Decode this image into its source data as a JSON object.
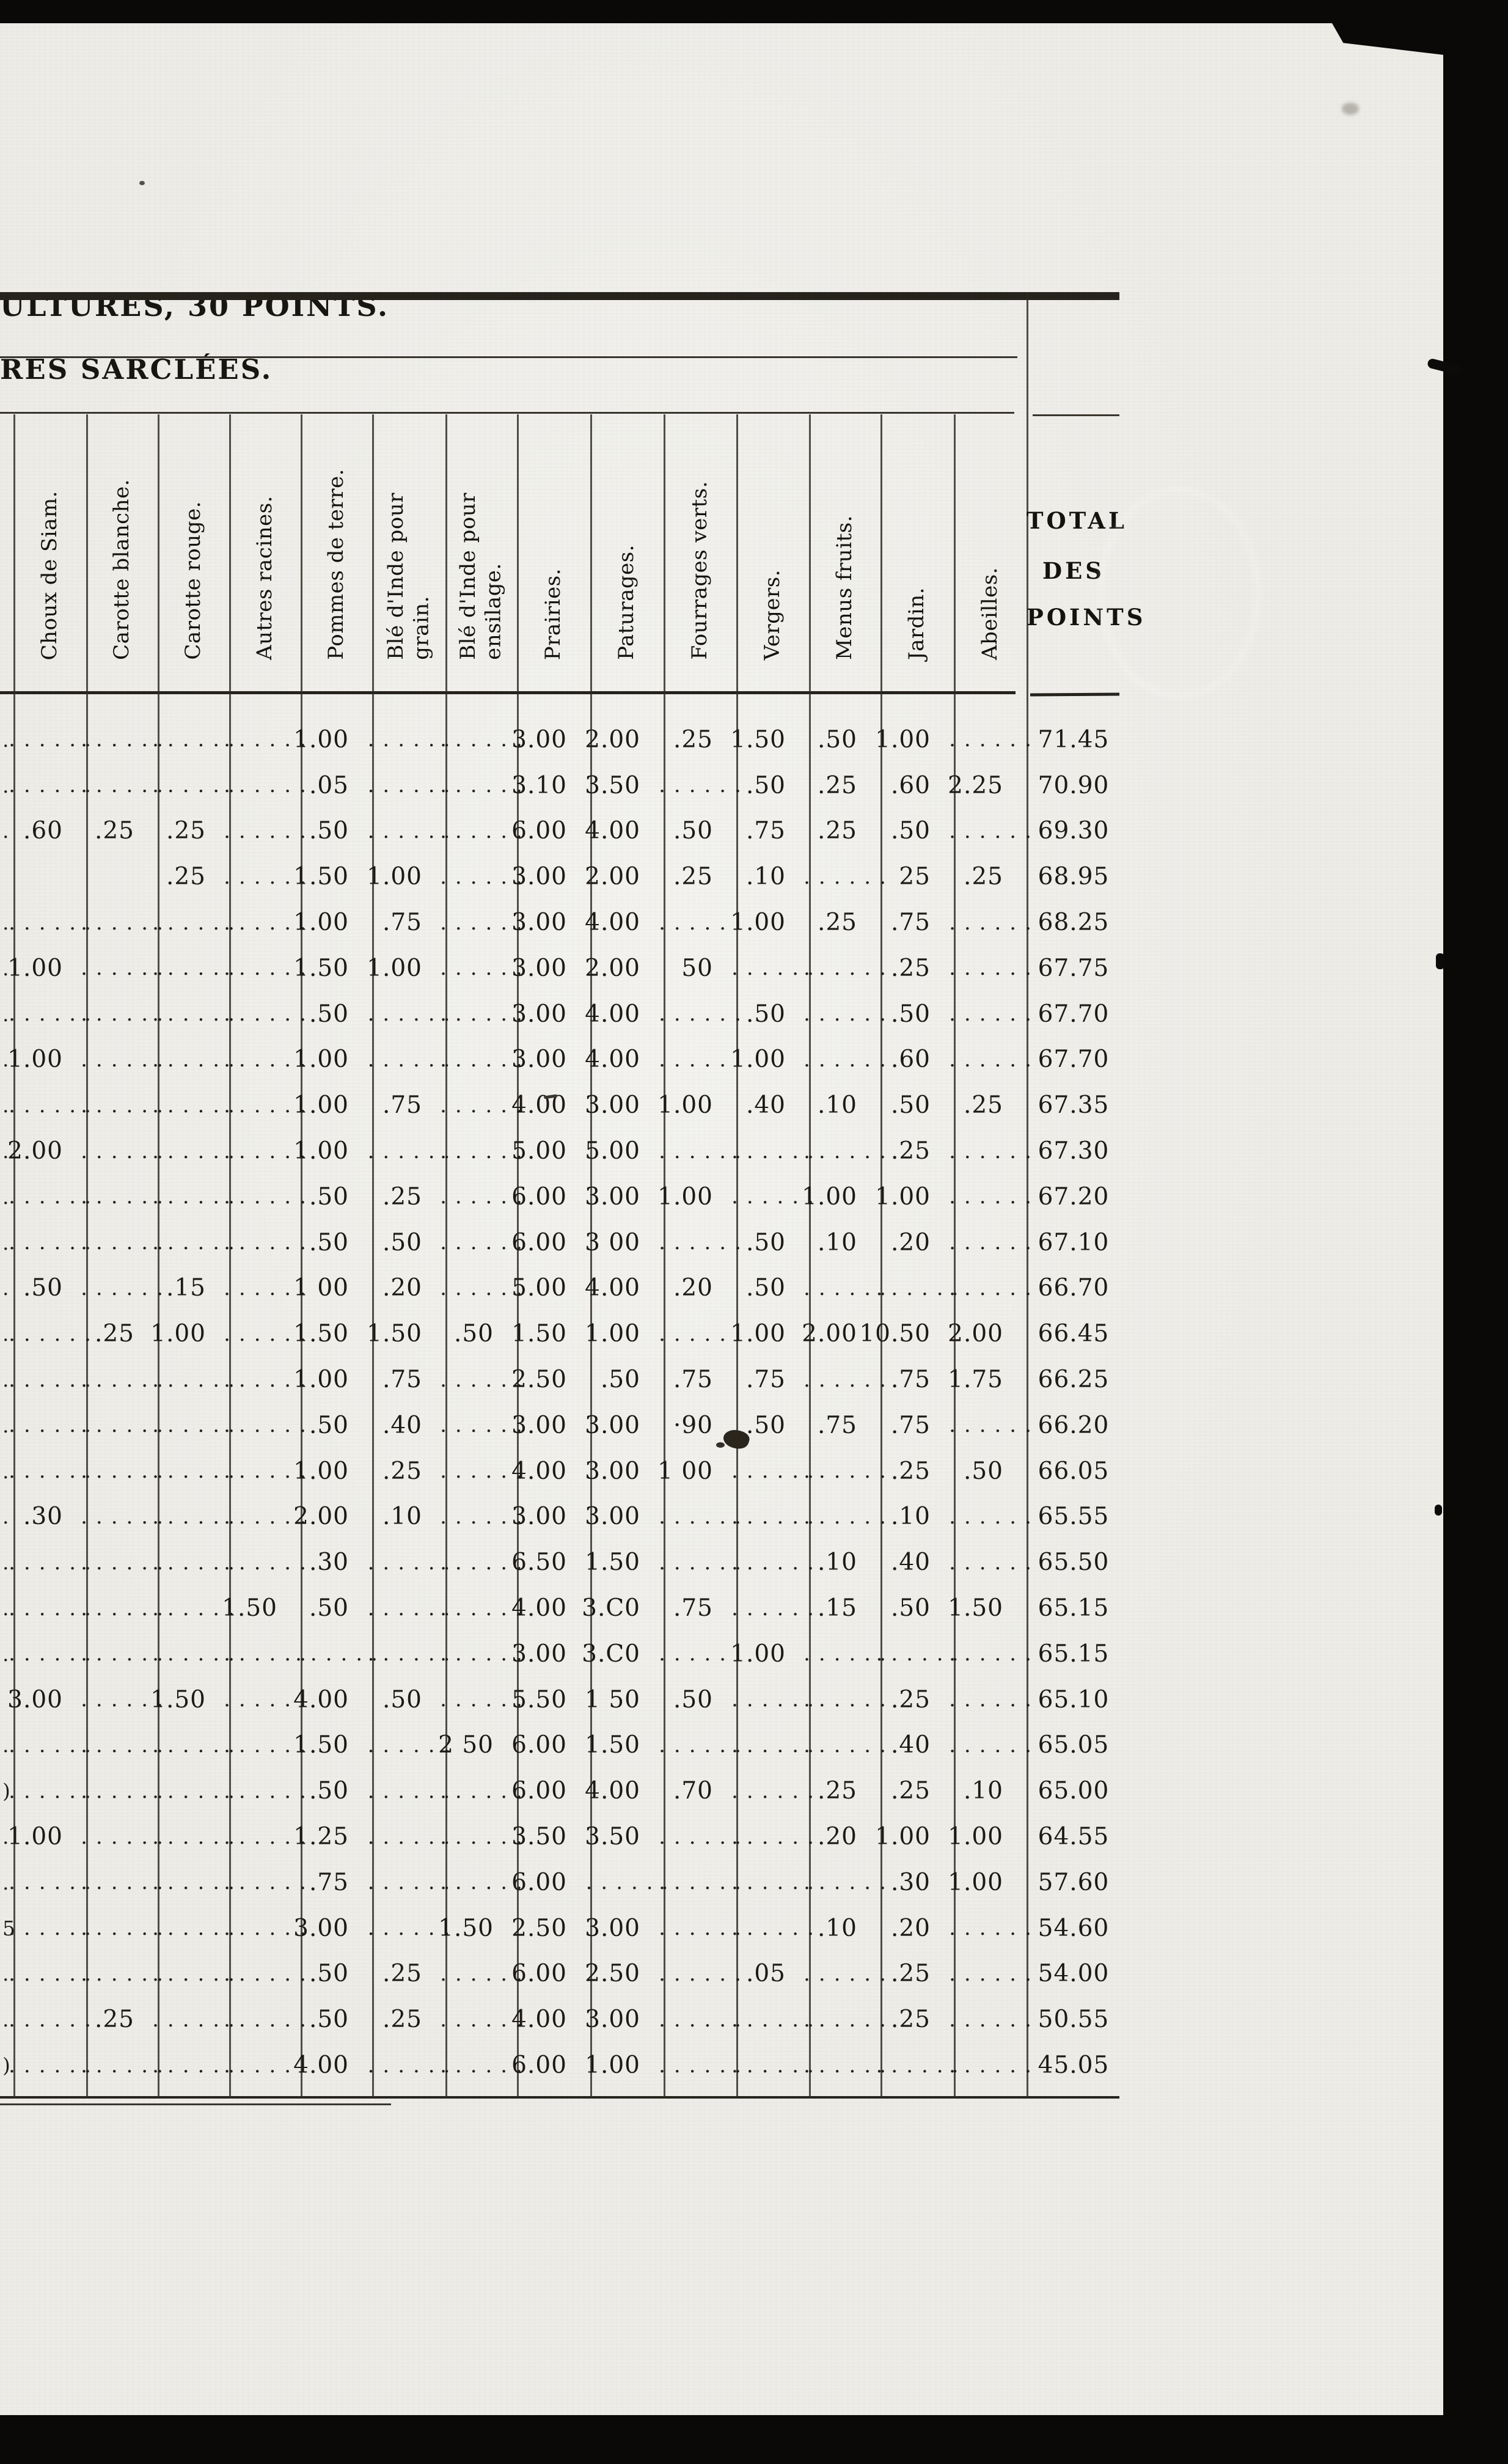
{
  "scan": {
    "title_partial": "ULTURES, 30 POINTS.",
    "subtitle_partial": "RES SARCLÉES."
  },
  "table": {
    "leader_dots": "......",
    "total_header": [
      "TOTAL",
      "DES",
      "POINTS"
    ],
    "headers": [
      {
        "line1": "Choux de Siam.",
        "line2": null
      },
      {
        "line1": "Carotte blanche.",
        "line2": null
      },
      {
        "line1": "Carotte rouge.",
        "line2": null
      },
      {
        "line1": "Autres racines.",
        "line2": null
      },
      {
        "line1": "Pommes de terre.",
        "line2": null
      },
      {
        "line1": "Blé d'Inde pour",
        "line2": "grain."
      },
      {
        "line1": "Blé d'Inde pour",
        "line2": "ensilage."
      },
      {
        "line1": "Prairies.",
        "line2": null
      },
      {
        "line1": "Paturages.",
        "line2": null
      },
      {
        "line1": "Fourrages verts.",
        "line2": null
      },
      {
        "line1": "Vergers.",
        "line2": null
      },
      {
        "line1": "Menus fruits.",
        "line2": null
      },
      {
        "line1": "Jardin.",
        "line2": null
      },
      {
        "line1": "Abeilles.",
        "line2": null
      }
    ],
    "total_column_label": "TOTAL DES POINTS",
    "rows": [
      {
        "frag": ".",
        "cells": [
          null,
          null,
          null,
          null,
          "1.00",
          null,
          null,
          "3.00",
          "2.00",
          ".25",
          "1.50",
          ".50",
          "1.00",
          null
        ],
        "total": "71.45"
      },
      {
        "frag": ".",
        "cells": [
          null,
          null,
          null,
          null,
          ".05",
          null,
          null,
          "3.10",
          "3.50",
          null,
          ".50",
          ".25",
          ".60",
          "2.25"
        ],
        "total": "70.90"
      },
      {
        "frag": ".",
        "cells": [
          ".60",
          ".25",
          ".25",
          null,
          ".50",
          null,
          null,
          "6.00",
          "4.00",
          ".50",
          ".75",
          ".25",
          ".50",
          null
        ],
        "total": "69.30"
      },
      {
        "frag": "",
        "cells": [
          "",
          "",
          ".25",
          null,
          "1.50",
          "1.00",
          null,
          "3.00",
          "2.00",
          ".25",
          ".10",
          null,
          "25",
          ".25"
        ],
        "total": "68.95"
      },
      {
        "frag": ".",
        "cells": [
          null,
          null,
          null,
          null,
          "1.00",
          ".75",
          null,
          "3.00",
          "4.00",
          null,
          "1.00",
          ".25",
          ".75",
          null
        ],
        "total": "68.25"
      },
      {
        "frag": ".",
        "cells": [
          "1.00",
          null,
          null,
          null,
          "1.50",
          "1.00",
          null,
          "3.00",
          "2.00",
          "50",
          null,
          null,
          ".25",
          null
        ],
        "total": "67.75"
      },
      {
        "frag": ".",
        "cells": [
          null,
          null,
          null,
          null,
          ".50",
          null,
          null,
          "3.00",
          "4.00",
          null,
          ".50",
          null,
          ".50",
          null
        ],
        "total": "67.70"
      },
      {
        "frag": ".",
        "cells": [
          "1.00",
          null,
          null,
          null,
          "1.00",
          null,
          null,
          "3.00",
          "4.00",
          null,
          "1.00",
          null,
          ".60",
          null
        ],
        "total": "67.70"
      },
      {
        "frag": ".",
        "cells": [
          null,
          null,
          null,
          null,
          "1.00",
          ".75",
          null,
          "4.00",
          "3.00",
          "1.00",
          ".40",
          ".10",
          ".50",
          ".25"
        ],
        "total": "67.35"
      },
      {
        "frag": ".",
        "cells": [
          "2.00",
          null,
          null,
          null,
          "1.00",
          null,
          null,
          "5.00",
          "5.00",
          null,
          null,
          null,
          ".25",
          null
        ],
        "total": "67.30"
      },
      {
        "frag": ".",
        "cells": [
          null,
          null,
          null,
          null,
          ".50",
          ".25",
          null,
          "6.00",
          "3.00",
          "1.00",
          null,
          "1.00",
          "1.00",
          null
        ],
        "total": "67.20"
      },
      {
        "frag": ".",
        "cells": [
          null,
          null,
          null,
          null,
          ".50",
          ".50",
          null,
          "6.00",
          "3 00",
          null,
          ".50",
          ".10",
          ".20",
          null
        ],
        "total": "67.10"
      },
      {
        "frag": ".",
        "cells": [
          ".50",
          null,
          ".15",
          null,
          "1 00",
          ".20",
          null,
          "5.00",
          "4.00",
          ".20",
          ".50",
          null,
          null,
          null
        ],
        "total": "66.70"
      },
      {
        "frag": ".",
        "cells": [
          null,
          ".25",
          "1.00",
          null,
          "1.50",
          "1.50",
          ".50",
          "1.50",
          "1.00",
          null,
          "1.00",
          "2.00",
          "10.50",
          "2.00"
        ],
        "total": "66.45"
      },
      {
        "frag": ".",
        "cells": [
          null,
          null,
          null,
          null,
          "1.00",
          ".75",
          null,
          "2.50",
          ".50",
          ".75",
          ".75",
          null,
          ".75",
          "1.75"
        ],
        "total": "66.25"
      },
      {
        "frag": ".",
        "cells": [
          null,
          null,
          null,
          null,
          ".50",
          ".40",
          null,
          "3.00",
          "3.00",
          "·90",
          ".50",
          ".75",
          ".75",
          null
        ],
        "total": "66.20"
      },
      {
        "frag": ".",
        "cells": [
          null,
          null,
          null,
          null,
          "1.00",
          ".25",
          null,
          "4.00",
          "3.00",
          "1 00",
          null,
          null,
          ".25",
          ".50"
        ],
        "total": "66.05"
      },
      {
        "frag": ".",
        "cells": [
          ".30",
          null,
          null,
          null,
          "2.00",
          ".10",
          null,
          "3.00",
          "3.00",
          null,
          null,
          null,
          ".10",
          null
        ],
        "total": "65.55"
      },
      {
        "frag": ".",
        "cells": [
          null,
          null,
          null,
          null,
          ".30",
          null,
          null,
          "6.50",
          "1.50",
          null,
          null,
          ".10",
          ".40",
          null
        ],
        "total": "65.50"
      },
      {
        "frag": ".",
        "cells": [
          null,
          null,
          null,
          "1.50",
          ".50",
          null,
          null,
          "4.00",
          "3.C0",
          ".75",
          null,
          ".15",
          ".50",
          "1.50"
        ],
        "total": "65.15"
      },
      {
        "frag": ".",
        "cells": [
          null,
          null,
          null,
          null,
          null,
          null,
          null,
          "3.00",
          "3.C0",
          null,
          "1.00",
          null,
          null,
          null
        ],
        "total": "65.15"
      },
      {
        "frag": "",
        "cells": [
          "3.00",
          null,
          "1.50",
          null,
          "4.00",
          ".50",
          null,
          "5.50",
          "1 50",
          ".50",
          null,
          null,
          ".25",
          null
        ],
        "total": "65.10"
      },
      {
        "frag": ".",
        "cells": [
          null,
          null,
          null,
          null,
          "1.50",
          null,
          "2 50",
          "6.00",
          "1.50",
          null,
          null,
          null,
          ".40",
          null
        ],
        "total": "65.05"
      },
      {
        "frag": ")",
        "cells": [
          null,
          null,
          null,
          null,
          ".50",
          null,
          null,
          "6.00",
          "4.00",
          ".70",
          null,
          ".25",
          ".25",
          ".10"
        ],
        "total": "65.00"
      },
      {
        "frag": ".",
        "cells": [
          "1.00",
          null,
          null,
          null,
          "1.25",
          null,
          null,
          "3.50",
          "3.50",
          null,
          null,
          ".20",
          "1.00",
          "1.00"
        ],
        "total": "64.55"
      },
      {
        "frag": ".",
        "cells": [
          null,
          null,
          null,
          null,
          ".75",
          null,
          null,
          "6.00",
          null,
          null,
          null,
          null,
          ".30",
          "1.00"
        ],
        "total": "57.60"
      },
      {
        "frag": "5",
        "cells": [
          null,
          null,
          null,
          null,
          "3.00",
          null,
          "1.50",
          "2.50",
          "3.00",
          null,
          null,
          ".10",
          ".20",
          null
        ],
        "total": "54.60"
      },
      {
        "frag": ".",
        "cells": [
          null,
          null,
          null,
          null,
          ".50",
          ".25",
          null,
          "6.00",
          "2.50",
          null,
          ".05",
          null,
          ".25",
          null
        ],
        "total": "54.00"
      },
      {
        "frag": ".",
        "cells": [
          null,
          ".25",
          null,
          null,
          ".50",
          ".25",
          null,
          "4.00",
          "3.00",
          null,
          null,
          null,
          ".25",
          null
        ],
        "total": "50.55"
      },
      {
        "frag": ")",
        "cells": [
          null,
          null,
          null,
          null,
          "4.00",
          null,
          null,
          "6.00",
          "1.00",
          null,
          null,
          null,
          null,
          null
        ],
        "total": "45.05"
      }
    ]
  }
}
